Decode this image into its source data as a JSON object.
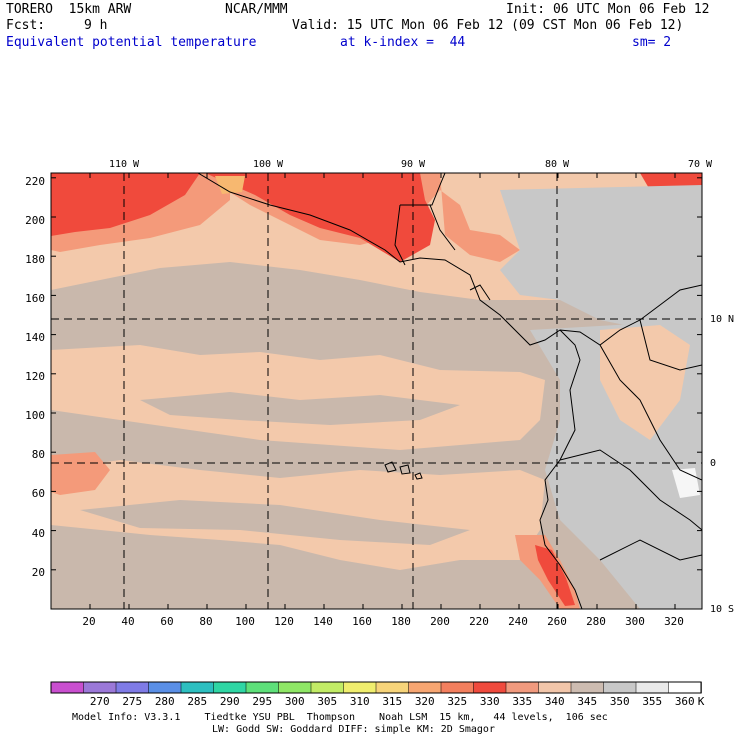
{
  "header": {
    "model": "TORERO  15km ARW",
    "center": "NCAR/MMM",
    "init": "Init: 06 UTC Mon 06 Feb 12",
    "fcst_label": "Fcst:",
    "fcst_value": "9 h",
    "valid": "Valid: 15 UTC Mon 06 Feb 12 (09 CST Mon 06 Feb 12)",
    "field": "Equivalent potential temperature",
    "level": "at k-index =  44",
    "smoothing": "sm= 2"
  },
  "map": {
    "lon_labels": [
      "110 W",
      "100 W",
      "90 W",
      "80 W",
      "70 W"
    ],
    "lat_labels": [
      "10 N",
      "0",
      "10 S"
    ],
    "y_ticks": [
      "20",
      "40",
      "60",
      "80",
      "100",
      "120",
      "140",
      "160",
      "180",
      "200",
      "220"
    ],
    "x_ticks": [
      "20",
      "40",
      "60",
      "80",
      "100",
      "120",
      "140",
      "160",
      "180",
      "200",
      "220",
      "240",
      "260",
      "280",
      "300",
      "320"
    ],
    "colors": {
      "ocean_cool": "#c9b8ac",
      "land_cool": "#c8c8c8",
      "band_340": "#f3c9ab",
      "band_335": "#f49a7a",
      "band_330": "#f04a3c",
      "band_325": "#f4825a",
      "band_320": "#f7b870",
      "white_355": "#f6f6f6"
    }
  },
  "colorbar": {
    "labels": [
      "270",
      "275",
      "280",
      "285",
      "290",
      "295",
      "300",
      "305",
      "310",
      "315",
      "320",
      "325",
      "330",
      "335",
      "340",
      "345",
      "350",
      "355",
      "360"
    ],
    "unit": "K",
    "colors": [
      "#c94fcf",
      "#9b78d8",
      "#7f7be6",
      "#5a8fe6",
      "#2dbfc0",
      "#2fd6a4",
      "#5ee07a",
      "#8fe766",
      "#c2ec66",
      "#f0ee6e",
      "#f7d47a",
      "#f7a672",
      "#f37f5e",
      "#ef4a3d",
      "#f19a7e",
      "#f2c6aa",
      "#cdbcb1",
      "#c8c8c8",
      "#e9e9e9",
      "#ffffff"
    ]
  },
  "footer": {
    "line1": "Model Info: V3.3.1    Tiedtke YSU PBL  Thompson    Noah LSM  15 km,   44 levels,  106 sec",
    "line2": "LW: Godd SW: Goddard DIFF: simple KM: 2D Smagor"
  }
}
